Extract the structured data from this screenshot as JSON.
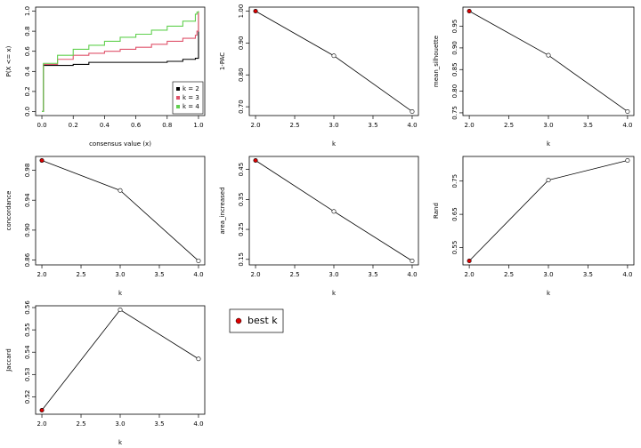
{
  "chart_data": [
    {
      "type": "ecdf",
      "xlabel": "consensus value (x)",
      "ylabel": "P(X <= x)",
      "x": [
        0,
        0.01,
        0.1,
        0.2,
        0.3,
        0.4,
        0.5,
        0.6,
        0.7,
        0.8,
        0.9,
        0.98,
        0.99,
        1.0
      ],
      "series": [
        {
          "name": "k = 2",
          "color": "#000000",
          "values": [
            0,
            0.46,
            0.46,
            0.47,
            0.49,
            0.49,
            0.49,
            0.49,
            0.49,
            0.5,
            0.52,
            0.53,
            0.53,
            1.0
          ]
        },
        {
          "name": "k = 3",
          "color": "#df536b",
          "values": [
            0,
            0.47,
            0.52,
            0.56,
            0.58,
            0.6,
            0.62,
            0.64,
            0.67,
            0.7,
            0.73,
            0.76,
            0.8,
            1.0
          ]
        },
        {
          "name": "k = 4",
          "color": "#61d04f",
          "values": [
            0,
            0.48,
            0.56,
            0.62,
            0.66,
            0.7,
            0.74,
            0.77,
            0.81,
            0.85,
            0.9,
            0.97,
            0.99,
            1.0
          ]
        }
      ],
      "xlim": [
        -0.04,
        1.04
      ],
      "ylim": [
        -0.04,
        1.04
      ],
      "xticks": [
        {
          "value": 0,
          "label": "0.0"
        },
        0.2,
        0.4,
        0.6,
        0.8,
        {
          "value": 1,
          "label": "1.0"
        }
      ],
      "yticks": [
        {
          "value": 0,
          "label": "0.0"
        },
        0.2,
        0.4,
        0.6,
        0.8,
        {
          "value": 1,
          "label": "1.0"
        }
      ],
      "legend": "bottom-right"
    },
    {
      "type": "line",
      "xlabel": "k",
      "ylabel": "1-PAC",
      "x": [
        2,
        3,
        4
      ],
      "values": [
        1.0,
        0.86,
        0.685
      ],
      "point_colors": [
        "#dd0000",
        "#ffffff",
        "#ffffff"
      ],
      "xlim": [
        1.92,
        4.08
      ],
      "ylim": [
        0.6724,
        1.0126
      ],
      "xticks": [
        {
          "value": 2,
          "label": "2.0"
        },
        2.5,
        {
          "value": 3,
          "label": "3.0"
        },
        3.5,
        {
          "value": 4,
          "label": "4.0"
        }
      ],
      "yticks": [
        {
          "value": 0.7,
          "label": "0.70"
        },
        {
          "value": 0.8,
          "label": "0.80"
        },
        {
          "value": 0.9,
          "label": "0.90"
        },
        {
          "value": 1,
          "label": "1.00"
        }
      ]
    },
    {
      "type": "line",
      "xlabel": "k",
      "ylabel": "mean_silhouette",
      "x": [
        2,
        3,
        4
      ],
      "values": [
        0.985,
        0.883,
        0.753
      ],
      "point_colors": [
        "#dd0000",
        "#ffffff",
        "#ffffff"
      ],
      "xlim": [
        1.92,
        4.08
      ],
      "ylim": [
        0.7437,
        0.9943
      ],
      "xticks": [
        {
          "value": 2,
          "label": "2.0"
        },
        2.5,
        {
          "value": 3,
          "label": "3.0"
        },
        3.5,
        {
          "value": 4,
          "label": "4.0"
        }
      ],
      "yticks": [
        0.75,
        {
          "value": 0.8,
          "label": "0.80"
        },
        0.85,
        {
          "value": 0.9,
          "label": "0.90"
        },
        0.95
      ]
    },
    {
      "type": "line",
      "xlabel": "k",
      "ylabel": "concordance",
      "x": [
        2,
        3,
        4
      ],
      "values": [
        0.993,
        0.953,
        0.859
      ],
      "point_colors": [
        "#dd0000",
        "#ffffff",
        "#ffffff"
      ],
      "xlim": [
        1.92,
        4.08
      ],
      "ylim": [
        0.8536,
        0.9984
      ],
      "xticks": [
        {
          "value": 2,
          "label": "2.0"
        },
        2.5,
        {
          "value": 3,
          "label": "3.0"
        },
        3.5,
        {
          "value": 4,
          "label": "4.0"
        }
      ],
      "yticks": [
        0.86,
        {
          "value": 0.9,
          "label": "0.90"
        },
        0.94,
        0.98
      ]
    },
    {
      "type": "line",
      "xlabel": "k",
      "ylabel": "area_increased",
      "x": [
        2,
        3,
        4
      ],
      "values": [
        0.48,
        0.31,
        0.145
      ],
      "point_colors": [
        "#dd0000",
        "#ffffff",
        "#ffffff"
      ],
      "xlim": [
        1.92,
        4.08
      ],
      "ylim": [
        0.1316,
        0.4934
      ],
      "xticks": [
        {
          "value": 2,
          "label": "2.0"
        },
        2.5,
        {
          "value": 3,
          "label": "3.0"
        },
        3.5,
        {
          "value": 4,
          "label": "4.0"
        }
      ],
      "yticks": [
        0.15,
        0.25,
        0.35,
        0.45
      ]
    },
    {
      "type": "line",
      "xlabel": "k",
      "ylabel": "Rand",
      "x": [
        2,
        3,
        4
      ],
      "values": [
        0.51,
        0.753,
        0.812
      ],
      "point_colors": [
        "#dd0000",
        "#ffffff",
        "#ffffff"
      ],
      "xlim": [
        1.92,
        4.08
      ],
      "ylim": [
        0.4979,
        0.8241
      ],
      "xticks": [
        {
          "value": 2,
          "label": "2.0"
        },
        2.5,
        {
          "value": 3,
          "label": "3.0"
        },
        3.5,
        {
          "value": 4,
          "label": "4.0"
        }
      ],
      "yticks": [
        0.55,
        0.65,
        0.75
      ]
    },
    {
      "type": "line",
      "xlabel": "k",
      "ylabel": "Jaccard",
      "x": [
        2,
        3,
        4
      ],
      "values": [
        0.514,
        0.559,
        0.537
      ],
      "point_colors": [
        "#dd0000",
        "#ffffff",
        "#ffffff"
      ],
      "xlim": [
        1.92,
        4.08
      ],
      "ylim": [
        0.5122,
        0.5608
      ],
      "xticks": [
        {
          "value": 2,
          "label": "2.0"
        },
        2.5,
        {
          "value": 3,
          "label": "3.0"
        },
        3.5,
        {
          "value": 4,
          "label": "4.0"
        }
      ],
      "yticks": [
        0.52,
        0.53,
        0.54,
        0.55,
        0.56
      ]
    }
  ],
  "legend_box": {
    "label": "best k",
    "color": "#dd0000"
  }
}
